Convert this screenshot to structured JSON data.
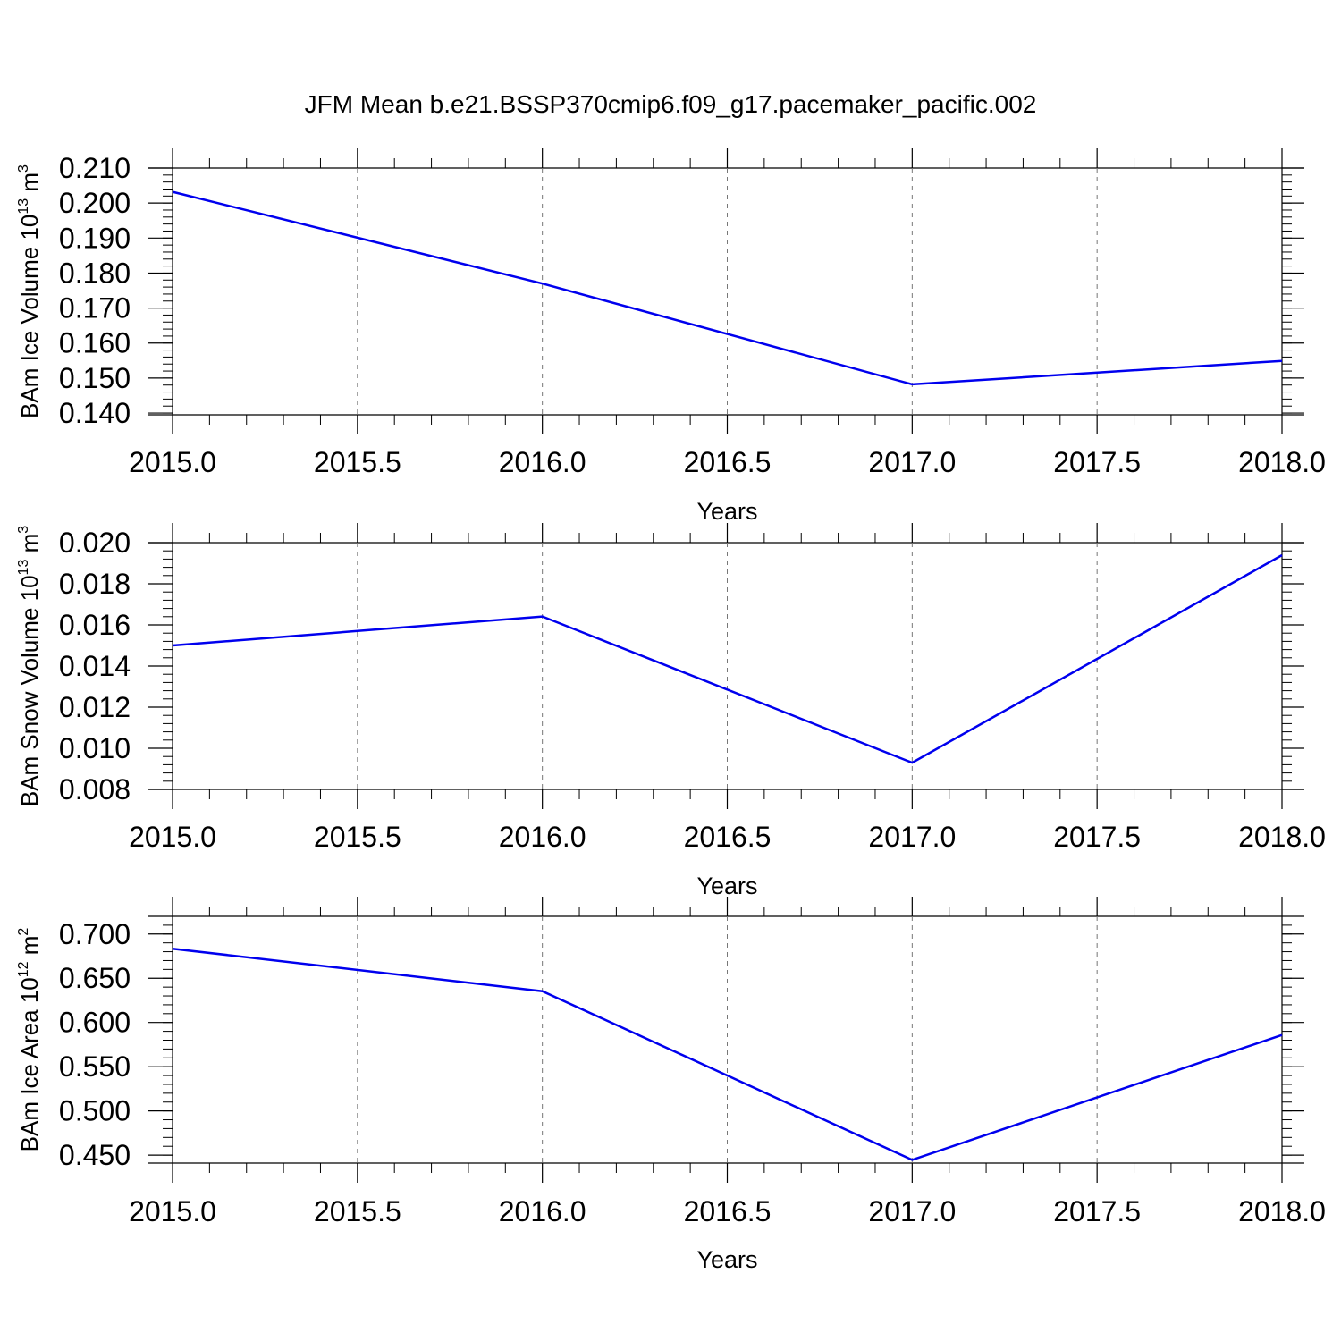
{
  "title": "JFM Mean b.e21.BSSP370cmip6.f09_g17.pacemaker_pacific.002",
  "line_color": "#0000ee",
  "chart_data": [
    {
      "type": "line",
      "ylabel": "BAm Ice Volume 10",
      "ylabel_sup": "13",
      "ylabel_unit": " m",
      "ylabel_unit_sup": "3",
      "xlabel": "Years",
      "x": [
        2015.0,
        2016.0,
        2017.0,
        2018.0
      ],
      "y": [
        0.2032,
        0.177,
        0.1482,
        0.1549
      ],
      "xlim": [
        2015.0,
        2018.0
      ],
      "ylim": [
        0.1395,
        0.21
      ],
      "xticks": [
        "2015.0",
        "2015.5",
        "2016.0",
        "2016.5",
        "2017.0",
        "2017.5",
        "2018.0"
      ],
      "xtick_values": [
        2015.0,
        2015.5,
        2016.0,
        2016.5,
        2017.0,
        2017.5,
        2018.0
      ],
      "yticks": [
        "0.140",
        "0.150",
        "0.160",
        "0.170",
        "0.180",
        "0.190",
        "0.200",
        "0.210"
      ],
      "ytick_values": [
        0.14,
        0.15,
        0.16,
        0.17,
        0.18,
        0.19,
        0.2,
        0.21
      ],
      "y_minor_step": 0.002,
      "grid": "vertical dashed"
    },
    {
      "type": "line",
      "ylabel": "BAm Snow Volume 10",
      "ylabel_sup": "13",
      "ylabel_unit": " m",
      "ylabel_unit_sup": "3",
      "xlabel": "Years",
      "x": [
        2015.0,
        2016.0,
        2017.0,
        2018.0
      ],
      "y": [
        0.015,
        0.01641,
        0.0093,
        0.01939
      ],
      "xlim": [
        2015.0,
        2018.0
      ],
      "ylim": [
        0.008,
        0.02
      ],
      "xticks": [
        "2015.0",
        "2015.5",
        "2016.0",
        "2016.5",
        "2017.0",
        "2017.5",
        "2018.0"
      ],
      "xtick_values": [
        2015.0,
        2015.5,
        2016.0,
        2016.5,
        2017.0,
        2017.5,
        2018.0
      ],
      "yticks": [
        "0.008",
        "0.010",
        "0.012",
        "0.014",
        "0.016",
        "0.018",
        "0.020"
      ],
      "ytick_values": [
        0.008,
        0.01,
        0.012,
        0.014,
        0.016,
        0.018,
        0.02
      ],
      "y_minor_step": 0.0004,
      "grid": "vertical dashed"
    },
    {
      "type": "line",
      "ylabel": "BAm Ice Area 10",
      "ylabel_sup": "12",
      "ylabel_unit": " m",
      "ylabel_unit_sup": "2",
      "xlabel": "Years",
      "x": [
        2015.0,
        2016.0,
        2017.0,
        2018.0
      ],
      "y": [
        0.6834,
        0.6354,
        0.4446,
        0.5859
      ],
      "xlim": [
        2015.0,
        2018.0
      ],
      "ylim": [
        0.441,
        0.72
      ],
      "xticks": [
        "2015.0",
        "2015.5",
        "2016.0",
        "2016.5",
        "2017.0",
        "2017.5",
        "2018.0"
      ],
      "xtick_values": [
        2015.0,
        2015.5,
        2016.0,
        2016.5,
        2017.0,
        2017.5,
        2018.0
      ],
      "yticks": [
        "0.450",
        "0.500",
        "0.550",
        "0.600",
        "0.650",
        "0.700"
      ],
      "ytick_values": [
        0.45,
        0.5,
        0.55,
        0.6,
        0.65,
        0.7
      ],
      "y_minor_step": 0.01,
      "grid": "vertical dashed"
    }
  ]
}
